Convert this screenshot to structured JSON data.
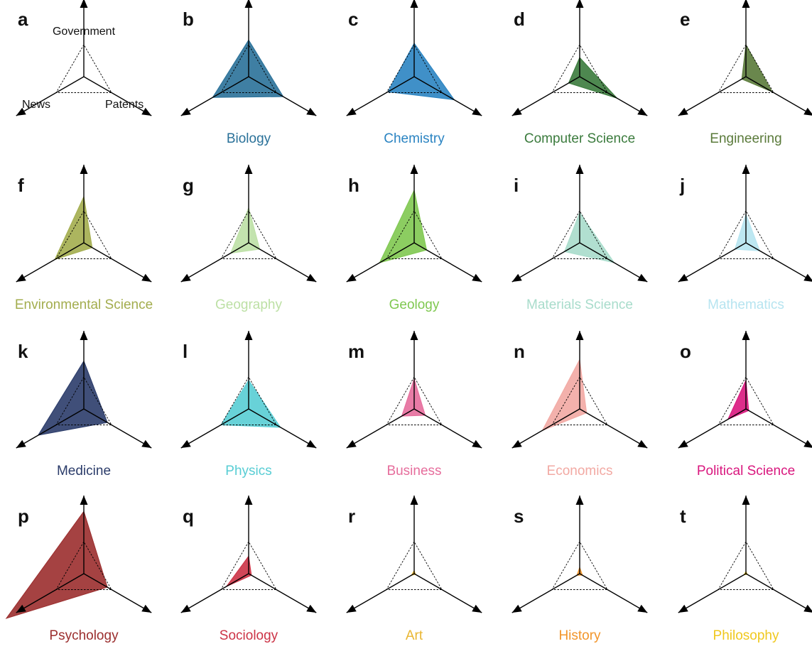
{
  "chart_data": {
    "type": "radar",
    "axes": [
      "Government",
      "News",
      "Patents"
    ],
    "reference_value": 1.0,
    "panels": [
      {
        "letter": "a",
        "field": "",
        "color": "",
        "values": null,
        "legend": true
      },
      {
        "letter": "b",
        "field": "Biology",
        "color": "#2a7199",
        "values": {
          "Government": 1.15,
          "News": 1.3,
          "Patents": 1.25
        }
      },
      {
        "letter": "c",
        "field": "Chemistry",
        "color": "#2b84c2",
        "values": {
          "Government": 1.05,
          "News": 0.95,
          "Patents": 1.45
        }
      },
      {
        "letter": "d",
        "field": "Computer Science",
        "color": "#3b7b3d",
        "values": {
          "Government": 0.6,
          "News": 0.4,
          "Patents": 1.35
        }
      },
      {
        "letter": "e",
        "field": "Engineering",
        "color": "#5a7a3a",
        "values": {
          "Government": 1.0,
          "News": 0.15,
          "Patents": 0.95
        }
      },
      {
        "letter": "f",
        "field": "Environmental Science",
        "color": "#a3ad4e",
        "values": {
          "Government": 1.45,
          "News": 1.05,
          "Patents": 0.3
        }
      },
      {
        "letter": "g",
        "field": "Geography",
        "color": "#bde0a5",
        "values": {
          "Government": 1.1,
          "News": 0.65,
          "Patents": 0.4
        }
      },
      {
        "letter": "h",
        "field": "Geology",
        "color": "#7fc850",
        "values": {
          "Government": 1.65,
          "News": 1.25,
          "Patents": 0.45
        }
      },
      {
        "letter": "i",
        "field": "Materials Science",
        "color": "#a8dccb",
        "values": {
          "Government": 0.95,
          "News": 0.55,
          "Patents": 1.25
        }
      },
      {
        "letter": "j",
        "field": "Mathematics",
        "color": "#b6e4f0",
        "values": {
          "Government": 0.9,
          "News": 0.4,
          "Patents": 0.5
        }
      },
      {
        "letter": "k",
        "field": "Medicine",
        "color": "#2b3c6a",
        "values": {
          "Government": 1.5,
          "News": 1.65,
          "Patents": 0.85
        }
      },
      {
        "letter": "l",
        "field": "Physics",
        "color": "#58cdd4",
        "values": {
          "Government": 0.9,
          "News": 1.0,
          "Patents": 1.15
        }
      },
      {
        "letter": "m",
        "field": "Business",
        "color": "#e66d9c",
        "values": {
          "Government": 0.95,
          "News": 0.45,
          "Patents": 0.4
        }
      },
      {
        "letter": "n",
        "field": "Economics",
        "color": "#f2a9a3",
        "values": {
          "Government": 1.55,
          "News": 1.35,
          "Patents": 0.25
        }
      },
      {
        "letter": "o",
        "field": "Political Science",
        "color": "#d9177e",
        "values": {
          "Government": 0.9,
          "News": 0.65,
          "Patents": 0.1
        }
      },
      {
        "letter": "p",
        "field": "Psychology",
        "color": "#9b2e2e",
        "values": {
          "Government": 1.95,
          "News": 2.8,
          "Patents": 0.85
        }
      },
      {
        "letter": "q",
        "field": "Sociology",
        "color": "#cc3346",
        "values": {
          "Government": 0.55,
          "News": 0.8,
          "Patents": 0.1
        }
      },
      {
        "letter": "r",
        "field": "Art",
        "color": "#e9b632",
        "values": {
          "Government": 0.1,
          "News": 0.1,
          "Patents": 0.05
        }
      },
      {
        "letter": "s",
        "field": "History",
        "color": "#f2952a",
        "values": {
          "Government": 0.2,
          "News": 0.1,
          "Patents": 0.1
        }
      },
      {
        "letter": "t",
        "field": "Philosophy",
        "color": "#f0c81e",
        "values": {
          "Government": 0.07,
          "News": 0.07,
          "Patents": 0.05
        }
      }
    ]
  }
}
